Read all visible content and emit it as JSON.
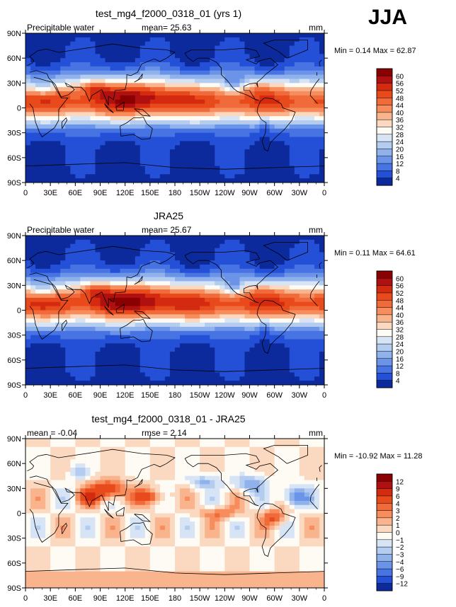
{
  "season": "JJA",
  "chart_data": [
    {
      "type": "heatmap",
      "title": "test_mg4_f2000_0318_01 (yrs 1)",
      "variable": "Precipitable water",
      "stat_text": "mean=  25.63",
      "units": "mm",
      "min_max_text": "Min =    0.14  Max =   62.87",
      "min": 0.14,
      "max": 62.87,
      "mean": 25.63,
      "kind": "pw",
      "ylabels": [
        "90N",
        "60N",
        "30N",
        "0",
        "30S",
        "60S",
        "90S"
      ],
      "xlabels": [
        "0",
        "30E",
        "60E",
        "90E",
        "120E",
        "150E",
        "180",
        "150W",
        "120W",
        "90W",
        "60W",
        "30W",
        "0"
      ],
      "colorbar": {
        "levels": [
          "60",
          "56",
          "52",
          "48",
          "44",
          "40",
          "36",
          "32",
          "28",
          "24",
          "20",
          "16",
          "12",
          "8",
          "4"
        ],
        "colors": [
          "#8b0000",
          "#b01010",
          "#d42a10",
          "#e84a1c",
          "#f06a3a",
          "#f78c5c",
          "#f9b48e",
          "#fbd8c0",
          "#fdfbf3",
          "#d6e4f6",
          "#b4ccf0",
          "#8fb2ec",
          "#6b94e8",
          "#4774e2",
          "#2450d8",
          "#0c2a9c"
        ]
      }
    },
    {
      "type": "heatmap",
      "title": "JRA25",
      "variable": "Precipitable water",
      "stat_text": "mean=  25.67",
      "units": "mm",
      "min_max_text": "Min =    0.11  Max =   64.61",
      "min": 0.11,
      "max": 64.61,
      "mean": 25.67,
      "kind": "pw",
      "ylabels": [
        "90N",
        "60N",
        "30N",
        "0",
        "30S",
        "60S",
        "90S"
      ],
      "xlabels": [
        "0",
        "30E",
        "60E",
        "90E",
        "120E",
        "150E",
        "180",
        "150W",
        "120W",
        "90W",
        "60W",
        "30W",
        "0"
      ],
      "colorbar": {
        "levels": [
          "60",
          "56",
          "52",
          "48",
          "44",
          "40",
          "36",
          "32",
          "28",
          "24",
          "20",
          "16",
          "12",
          "8",
          "4"
        ],
        "colors": [
          "#8b0000",
          "#b01010",
          "#d42a10",
          "#e84a1c",
          "#f06a3a",
          "#f78c5c",
          "#f9b48e",
          "#fbd8c0",
          "#fdfbf3",
          "#d6e4f6",
          "#b4ccf0",
          "#8fb2ec",
          "#6b94e8",
          "#4774e2",
          "#2450d8",
          "#0c2a9c"
        ]
      }
    },
    {
      "type": "heatmap",
      "title": "test_mg4_f2000_0318_01 - JRA25",
      "variable": "mean =  -0.04",
      "stat_text": "rmse =     2.14",
      "units": "mm",
      "min_max_text": "Min = -10.92  Max =   11.28",
      "min": -10.92,
      "max": 11.28,
      "mean": -0.04,
      "rmse": 2.14,
      "kind": "diff",
      "ylabels": [
        "90N",
        "60N",
        "30N",
        "0",
        "30S",
        "60S",
        "90S"
      ],
      "xlabels": [
        "0",
        "30E",
        "60E",
        "90E",
        "120E",
        "150E",
        "180",
        "150W",
        "120W",
        "90W",
        "60W",
        "30W",
        "0"
      ],
      "colorbar": {
        "levels": [
          "12",
          "9",
          "6",
          "4",
          "3",
          "2",
          "1",
          "0",
          "−1",
          "−2",
          "−3",
          "−4",
          "−6",
          "−9",
          "−12"
        ],
        "colors": [
          "#8b0000",
          "#b01010",
          "#d42a10",
          "#e84a1c",
          "#f06a3a",
          "#f78c5c",
          "#f9b48e",
          "#fbd8c0",
          "#fdfbf3",
          "#d6e4f6",
          "#b4ccf0",
          "#8fb2ec",
          "#6b94e8",
          "#4774e2",
          "#2450d8",
          "#0c2a9c"
        ]
      }
    }
  ]
}
